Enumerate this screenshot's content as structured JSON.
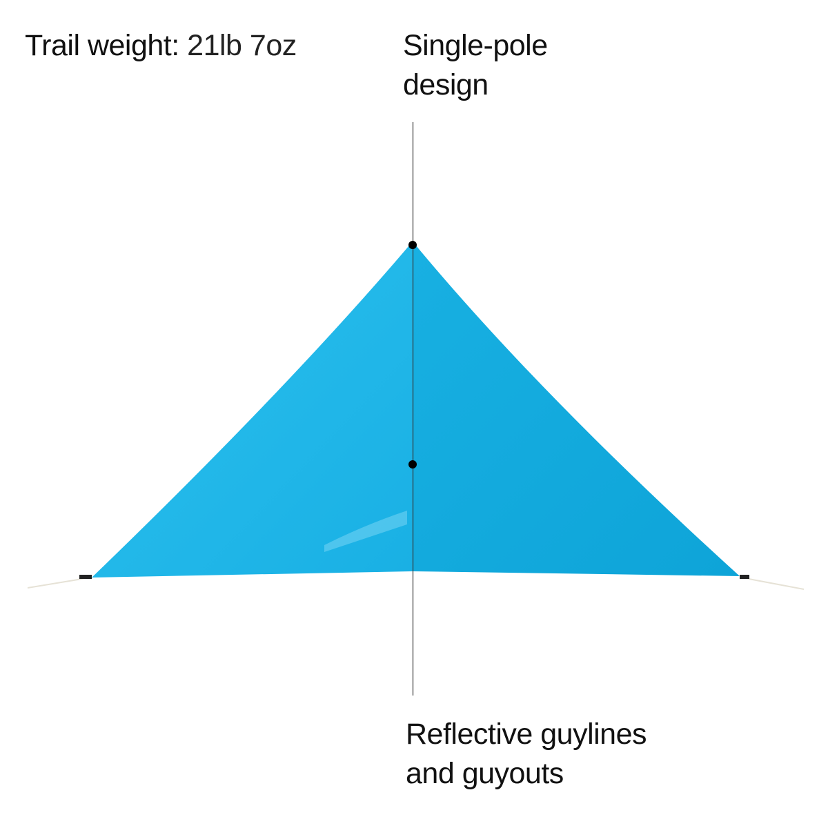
{
  "trail_weight": {
    "label": "Trail weight:",
    "value": "21lb 7oz"
  },
  "callouts": [
    {
      "lines": [
        "Single-pole",
        "design"
      ]
    },
    {
      "lines": [
        "Reflective guylines",
        "and guyouts"
      ]
    }
  ],
  "colors": {
    "tent_light": "#22b8e8",
    "tent_dark": "#10a6da",
    "leader_line": "#333333"
  }
}
